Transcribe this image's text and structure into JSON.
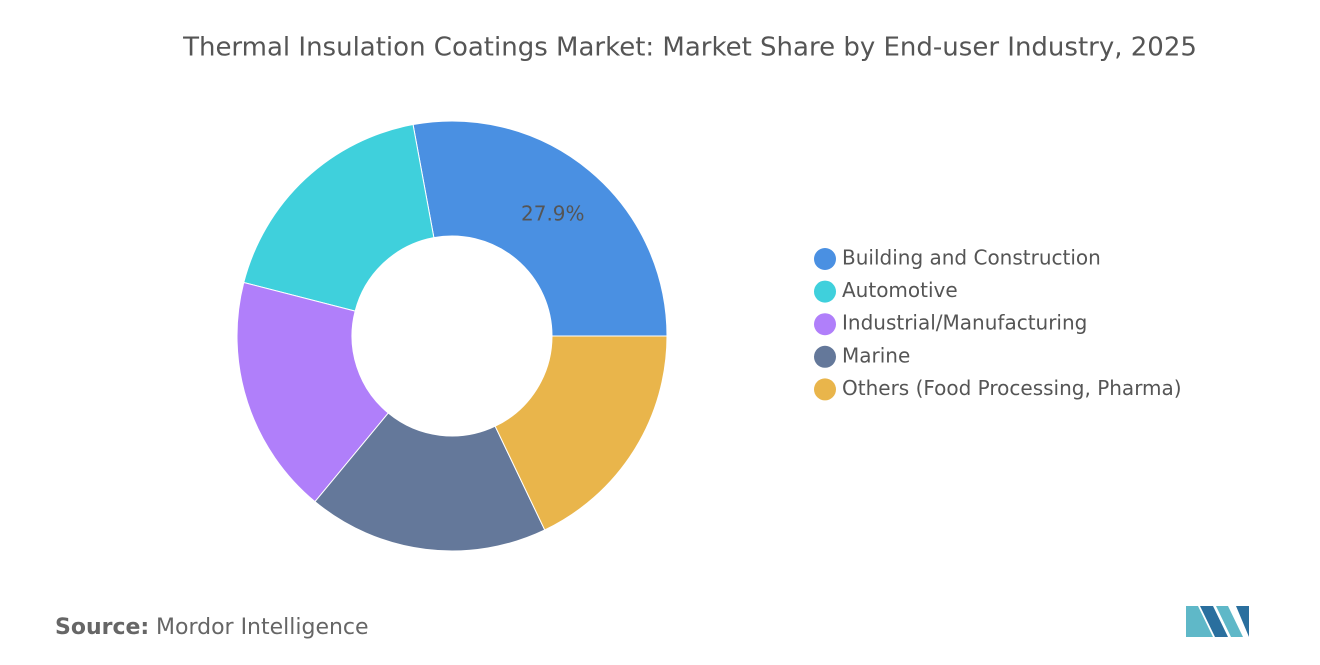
{
  "chart_data": {
    "type": "donut",
    "title": "Thermal Insulation Coatings Market: Market Share by End-user Industry, 2025",
    "categories": [
      "Building and Construction",
      "Automotive",
      "Industrial/Manufacturing",
      "Marine",
      "Others (Food Processing, Pharma)"
    ],
    "values": [
      27.9,
      18.1,
      18.0,
      18.1,
      17.9
    ],
    "value_labels": [
      "27.9%",
      null,
      null,
      null,
      null
    ],
    "colors": [
      "#4a90e2",
      "#3fd0dc",
      "#b07ffa",
      "#64789a",
      "#e9b54b"
    ],
    "legend": "right"
  },
  "source": {
    "label": "Source:",
    "text": "Mordor Intelligence"
  }
}
